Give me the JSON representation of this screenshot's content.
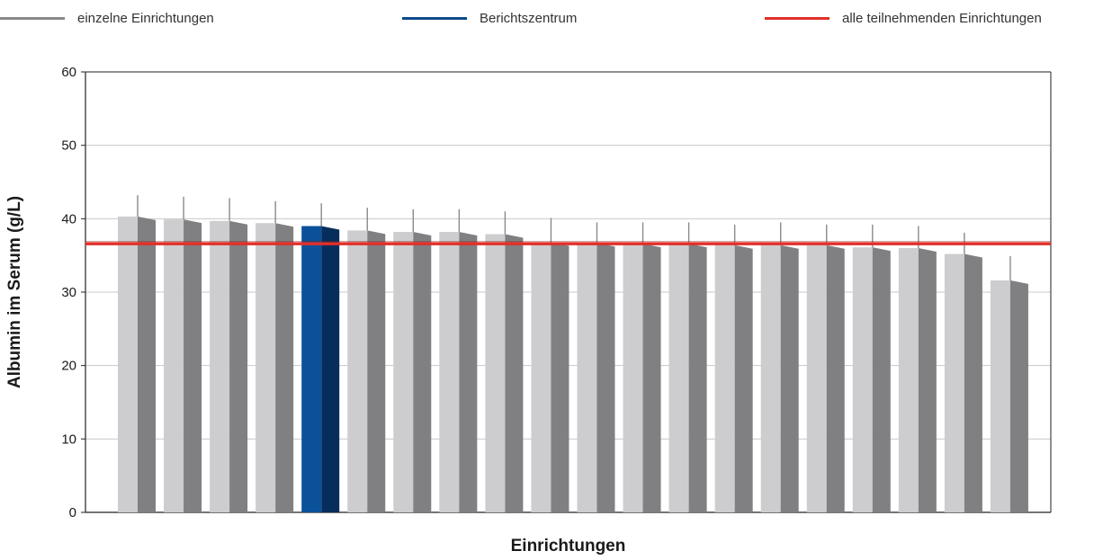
{
  "colors": {
    "single": "#8a8a8a",
    "report": "#0b4a8c",
    "all": "#e0302a",
    "bar_light": "#cdcdcf",
    "bar_dark": "#808083",
    "report_light": "#0a519a",
    "report_dark": "#072d5c",
    "grid": "#c8c8c8",
    "axis": "#222222"
  },
  "legend": [
    {
      "label": "einzelne Einrichtungen",
      "color": "#8a8a8a"
    },
    {
      "label": "Berichtszentrum",
      "color": "#0b4a8c"
    },
    {
      "label": "alle teilnehmenden Einrichtungen",
      "color": "#e0302a"
    }
  ],
  "chart_data": {
    "type": "bar",
    "xlabel": "Einrichtungen",
    "ylabel": "Albumin im Serum (g/L)",
    "ylim": [
      0,
      60
    ],
    "yticks": [
      0,
      10,
      20,
      30,
      40,
      50,
      60
    ],
    "grid": true,
    "legend_position": "top",
    "reference_line": {
      "name": "alle teilnehmenden Einrichtungen",
      "value": 36.6
    },
    "highlight_index": 4,
    "series": [
      {
        "name": "einzelne Einrichtungen",
        "values": [
          40.3,
          39.9,
          39.7,
          39.4,
          39.0,
          38.4,
          38.2,
          38.2,
          37.9,
          36.8,
          36.7,
          36.6,
          36.6,
          36.4,
          36.4,
          36.4,
          36.1,
          36.0,
          35.2,
          31.6
        ],
        "error_upper": [
          43.2,
          43.0,
          42.8,
          42.4,
          42.1,
          41.5,
          41.3,
          41.3,
          41.0,
          40.1,
          39.5,
          39.5,
          39.5,
          39.2,
          39.5,
          39.2,
          39.2,
          39.0,
          38.1,
          34.9
        ]
      }
    ]
  }
}
